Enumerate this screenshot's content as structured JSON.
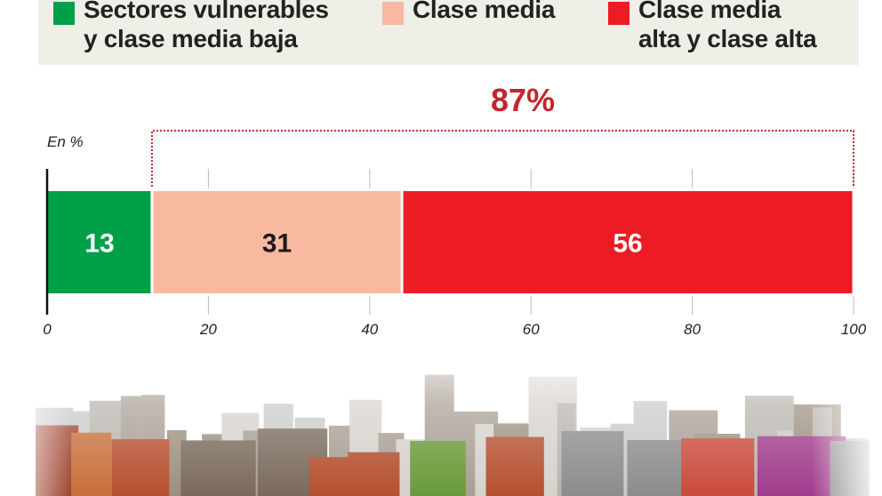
{
  "chart_data": {
    "type": "bar",
    "orientation": "horizontal",
    "stacked": true,
    "unit_label": "En %",
    "xlim": [
      0,
      100
    ],
    "xticks": [
      0,
      20,
      40,
      60,
      80,
      100
    ],
    "grid": true,
    "legend_placement": "top",
    "series": [
      {
        "name": "Sectores vulnerables y clase media baja",
        "name_lines": [
          "Sectores vulnerables",
          "y clase media baja"
        ],
        "value": 13,
        "color": "#00a04a",
        "label_color": "#ffffff"
      },
      {
        "name": "Clase media",
        "name_lines": [
          "Clase media"
        ],
        "value": 31,
        "color": "#f8b9a0",
        "label_color": "#1a1a1a"
      },
      {
        "name": "Clase media alta y clase alta",
        "name_lines": [
          "Clase media",
          "alta y clase alta"
        ],
        "value": 56,
        "color": "#ed1c24",
        "label_color": "#ffffff"
      }
    ],
    "annotation": {
      "text": "87%",
      "from": 13,
      "to": 100,
      "color": "#c1272d"
    }
  }
}
